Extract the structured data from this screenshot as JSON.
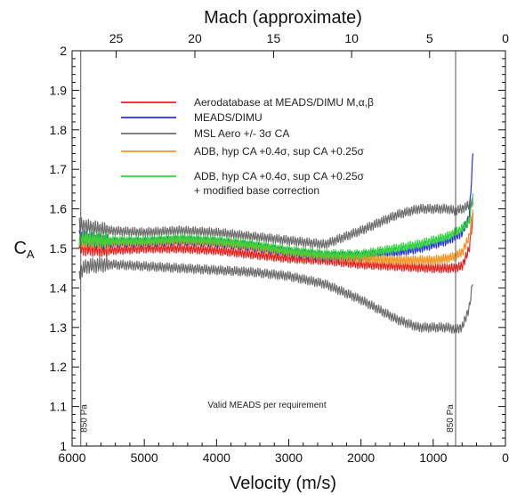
{
  "chart_data": {
    "type": "line",
    "title": "",
    "xlabel": "Velocity (m/s)",
    "ylabel": "C",
    "ylabel_sub": "A",
    "x2label": "Mach (approximate)",
    "xlim": [
      6000,
      0
    ],
    "ylim": [
      1.0,
      2.0
    ],
    "x_ticks": [
      6000,
      5000,
      4000,
      3000,
      2000,
      1000,
      0
    ],
    "x_tick_labels": [
      "6000",
      "5000",
      "4000",
      "3000",
      "2000",
      "1000",
      "0"
    ],
    "y_ticks": [
      1,
      1.1,
      1.2,
      1.3,
      1.4,
      1.5,
      1.6,
      1.7,
      1.8,
      1.9,
      2
    ],
    "y_tick_labels": [
      "1",
      "1.1",
      "1.2",
      "1.3",
      "1.4",
      "1.5",
      "1.6",
      "1.7",
      "1.8",
      "1.9",
      "2"
    ],
    "mach_ticks": [
      {
        "velocity": 5390,
        "label": "25"
      },
      {
        "velocity": 4300,
        "label": "20"
      },
      {
        "velocity": 3210,
        "label": "15"
      },
      {
        "velocity": 2130,
        "label": "10"
      },
      {
        "velocity": 1050,
        "label": "5"
      },
      {
        "velocity": 0,
        "label": "0"
      }
    ],
    "vertical_lines": [
      {
        "x": 5880,
        "label": "850 Pa"
      },
      {
        "x": 690,
        "label": "850 Pa"
      }
    ],
    "annotation": "Valid MEADS per requirement",
    "grid": false,
    "legend_position": "top-right",
    "series": [
      {
        "name": "Aerodatabase at MEADS/DIMU M,α,β",
        "color": "#e8211d",
        "oscillation": 0.012,
        "x": [
          5900,
          5800,
          5500,
          5000,
          4500,
          4000,
          3500,
          3000,
          2500,
          2000,
          1500,
          1200,
          1000,
          800,
          700,
          600,
          500,
          450
        ],
        "y": [
          1.5,
          1.5,
          1.495,
          1.5,
          1.5,
          1.495,
          1.485,
          1.475,
          1.47,
          1.46,
          1.455,
          1.452,
          1.45,
          1.45,
          1.45,
          1.455,
          1.5,
          1.58
        ]
      },
      {
        "name": "MEADS/DIMU",
        "color": "#2a2ee8",
        "oscillation": 0.012,
        "x": [
          5900,
          5800,
          5500,
          5000,
          4500,
          4000,
          3500,
          3000,
          2500,
          2000,
          1500,
          1200,
          1000,
          800,
          700,
          600,
          500,
          450
        ],
        "y": [
          1.53,
          1.525,
          1.515,
          1.515,
          1.52,
          1.515,
          1.505,
          1.49,
          1.48,
          1.48,
          1.49,
          1.5,
          1.51,
          1.52,
          1.53,
          1.54,
          1.58,
          1.74
        ]
      },
      {
        "name": "MSL Aero +/- 3σ CA",
        "color": "#6e6e6e",
        "oscillation": 0.012,
        "x": [
          5900,
          5800,
          5500,
          5000,
          4500,
          4000,
          3500,
          3000,
          2500,
          2000,
          1500,
          1200,
          1000,
          800,
          700,
          600,
          500,
          450
        ],
        "y": [
          1.56,
          1.555,
          1.545,
          1.54,
          1.545,
          1.54,
          1.53,
          1.52,
          1.51,
          1.545,
          1.585,
          1.6,
          1.6,
          1.6,
          1.595,
          1.6,
          1.61,
          1.62
        ]
      },
      {
        "name": "",
        "color": "#6e6e6e",
        "oscillation": 0.012,
        "x": [
          5900,
          5800,
          5500,
          5000,
          4500,
          4000,
          3500,
          3000,
          2500,
          2000,
          1500,
          1200,
          1000,
          800,
          700,
          600,
          500,
          450
        ],
        "y": [
          1.44,
          1.455,
          1.46,
          1.455,
          1.45,
          1.445,
          1.44,
          1.43,
          1.41,
          1.37,
          1.32,
          1.3,
          1.3,
          1.3,
          1.295,
          1.3,
          1.35,
          1.42
        ]
      },
      {
        "name": "ADB, hyp CA +0.4σ, sup CA +0.25σ",
        "color": "#f5921c",
        "oscillation": 0.012,
        "x": [
          5900,
          5800,
          5500,
          5000,
          4500,
          4000,
          3500,
          3000,
          2500,
          2000,
          1500,
          1200,
          1000,
          800,
          700,
          600,
          500,
          450
        ],
        "y": [
          1.52,
          1.52,
          1.515,
          1.515,
          1.52,
          1.515,
          1.505,
          1.49,
          1.48,
          1.475,
          1.47,
          1.47,
          1.47,
          1.475,
          1.48,
          1.49,
          1.53,
          1.6
        ]
      },
      {
        "name": "ADB, hyp CA +0.4σ, sup CA +0.25σ + modified base correction",
        "color": "#2fd63a",
        "oscillation": 0.012,
        "x": [
          5900,
          5800,
          5500,
          5000,
          4500,
          4000,
          3500,
          3000,
          2500,
          2000,
          1500,
          1200,
          1000,
          800,
          700,
          600,
          500,
          450
        ],
        "y": [
          1.525,
          1.525,
          1.52,
          1.52,
          1.525,
          1.52,
          1.51,
          1.495,
          1.485,
          1.485,
          1.5,
          1.51,
          1.52,
          1.53,
          1.54,
          1.55,
          1.57,
          1.63
        ]
      }
    ],
    "legend": [
      {
        "text": "Aerodatabase at MEADS/DIMU M,α,β",
        "color": "#e8211d"
      },
      {
        "text": "MEADS/DIMU",
        "color": "#2a2ee8"
      },
      {
        "text": "MSL Aero +/- 3σ CA",
        "color": "#6e6e6e"
      },
      {
        "text": "ADB, hyp CA +0.4σ, sup CA +0.25σ",
        "color": "#f5921c"
      },
      {
        "text": "ADB, hyp CA +0.4σ, sup CA +0.25σ",
        "text2": "+ modified base correction",
        "color": "#2fd63a"
      }
    ]
  }
}
